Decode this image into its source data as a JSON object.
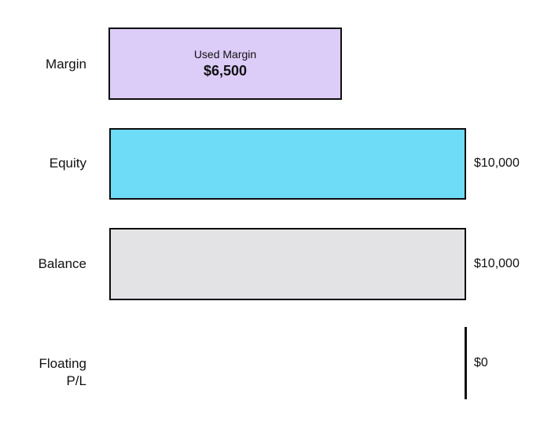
{
  "colors": {
    "background": "#ffffff",
    "margin_bar_fill": "#dcccf8",
    "equity_bar_fill": "#6edcf7",
    "balance_bar_fill": "#e3e2e4",
    "bar_border": "#0d0d0d",
    "text": "#111111"
  },
  "rows": [
    {
      "label": "Margin",
      "bar": {
        "annotation_title": "Used Margin",
        "annotation_value": "$6,500"
      }
    },
    {
      "label": "Equity",
      "value": "$10,000"
    },
    {
      "label": "Balance",
      "value": "$10,000"
    },
    {
      "label": "Floating",
      "label_line2": "P/L",
      "value": "$0"
    }
  ],
  "chart_data": {
    "type": "bar",
    "orientation": "horizontal",
    "categories": [
      "Margin",
      "Equity",
      "Balance",
      "Floating P/L"
    ],
    "values": [
      6500,
      10000,
      10000,
      0
    ],
    "value_labels": [
      "",
      "$10,000",
      "$10,000",
      "$0"
    ],
    "bar_annotations": [
      {
        "category": "Margin",
        "lines": [
          "Used Margin",
          "$6,500"
        ]
      }
    ],
    "bar_colors": [
      "#dcccf8",
      "#6edcf7",
      "#e3e2e4",
      "#0d0d0d"
    ],
    "xlim": [
      0,
      10000
    ],
    "title": "",
    "xlabel": "",
    "ylabel": "",
    "grid": false,
    "legend": false
  }
}
